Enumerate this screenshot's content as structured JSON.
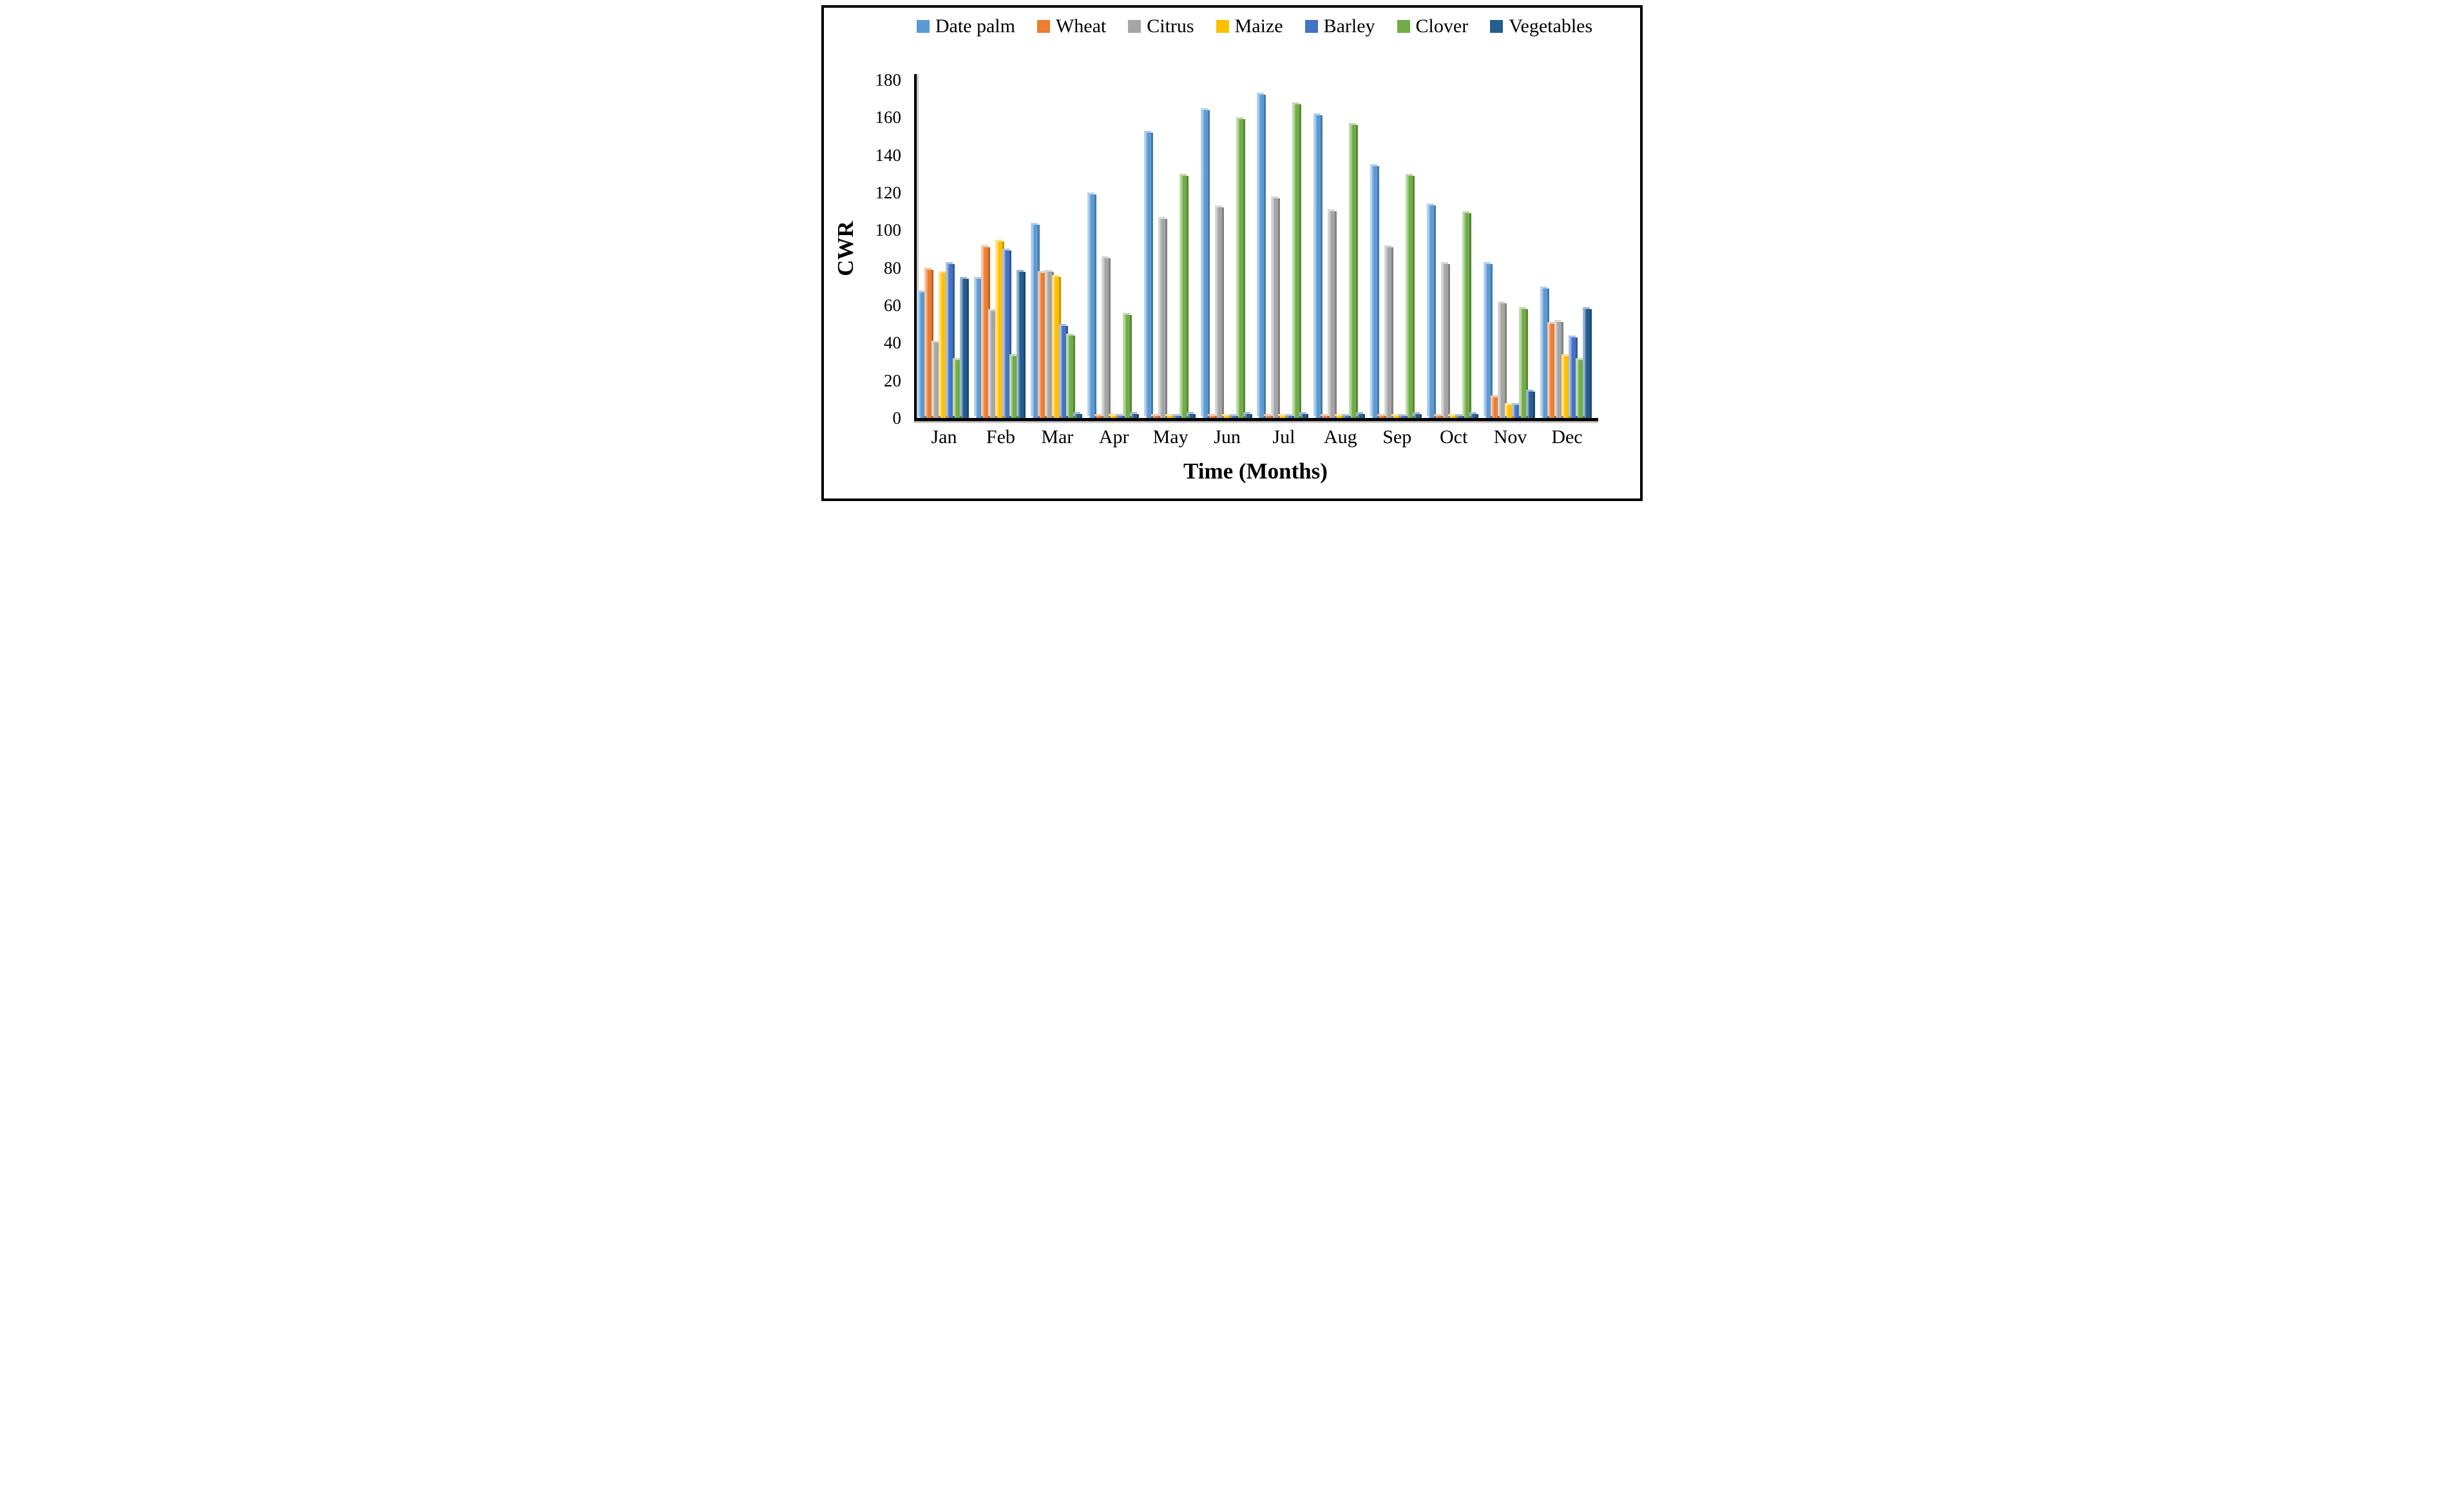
{
  "figure": {
    "y_axis_title": "CWR",
    "x_axis_title": "Time (Months)"
  },
  "chart_data": {
    "type": "bar",
    "title": "",
    "xlabel": "Time (Months)",
    "ylabel": "CWR",
    "ylim": [
      0,
      180
    ],
    "ytick_step": 20,
    "grid": false,
    "legend_position": "top",
    "categories": [
      "Jan",
      "Feb",
      "Mar",
      "Apr",
      "May",
      "Jun",
      "Jul",
      "Aug",
      "Sep",
      "Oct",
      "Nov",
      "Dec"
    ],
    "series": [
      {
        "name": "Date palm",
        "color": "#5B9BD5",
        "values": [
          67,
          74,
          103,
          119,
          152,
          164,
          172,
          161,
          134,
          113,
          82,
          69
        ]
      },
      {
        "name": "Wheat",
        "color": "#ED7D31",
        "values": [
          79,
          91,
          77,
          1,
          1,
          1,
          1,
          1,
          1,
          1,
          11,
          50
        ]
      },
      {
        "name": "Citrus",
        "color": "#A5A5A5",
        "values": [
          40,
          57,
          78,
          85,
          106,
          112,
          117,
          110,
          91,
          82,
          61,
          51
        ]
      },
      {
        "name": "Maize",
        "color": "#FFC000",
        "values": [
          77,
          94,
          75,
          1,
          1,
          1,
          1,
          1,
          1,
          1,
          7,
          33
        ]
      },
      {
        "name": "Barley",
        "color": "#4472C4",
        "values": [
          82,
          89,
          49,
          1,
          1,
          1,
          1,
          1,
          1,
          1,
          7,
          43
        ]
      },
      {
        "name": "Clover",
        "color": "#70AD47",
        "values": [
          31,
          33,
          44,
          55,
          129,
          159,
          167,
          156,
          129,
          109,
          58,
          31
        ]
      },
      {
        "name": "Vegetables",
        "color": "#255E91",
        "values": [
          74,
          78,
          2,
          2,
          2,
          2,
          2,
          2,
          2,
          2,
          14,
          58
        ]
      }
    ]
  }
}
